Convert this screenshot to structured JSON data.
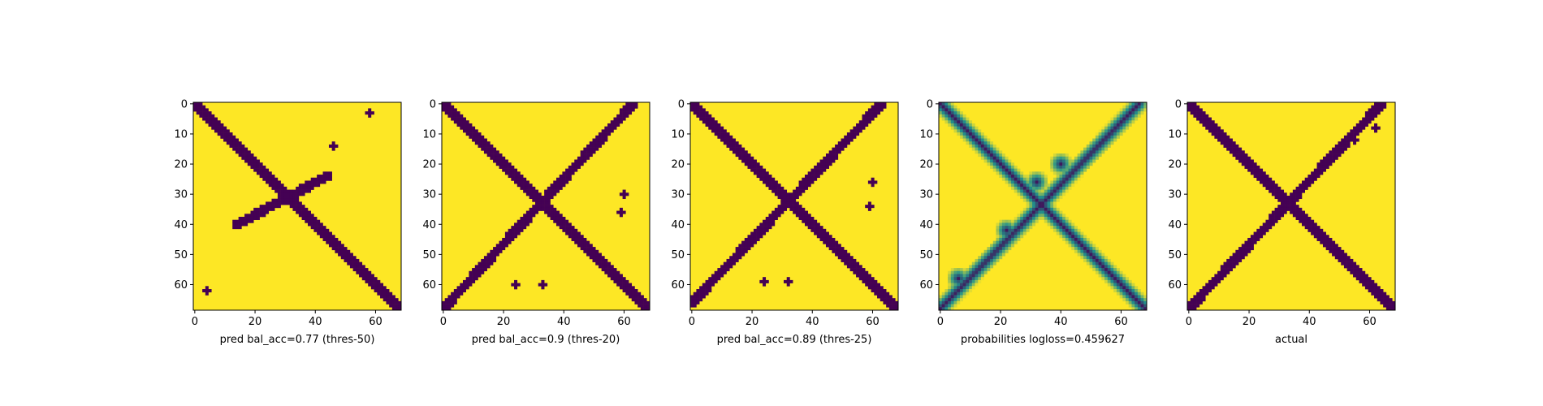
{
  "chart_data": [
    {
      "type": "heatmap",
      "title": "pred bal_acc=0.77 (thres-50)",
      "grid": false,
      "size": 69,
      "xticks": [
        0,
        20,
        40,
        60
      ],
      "yticks": [
        0,
        10,
        20,
        30,
        40,
        50,
        60
      ],
      "kind": "binary",
      "structures": {
        "main_diagonal": true,
        "anti_diagonal": [
          [
            24,
            44
          ],
          [
            40,
            14
          ]
        ],
        "blobs": [
          [
            3,
            58
          ],
          [
            62,
            4
          ],
          [
            14,
            46
          ]
        ]
      }
    },
    {
      "type": "heatmap",
      "title": "pred bal_acc=0.9 (thres-20)",
      "grid": false,
      "size": 69,
      "xticks": [
        0,
        20,
        40,
        60
      ],
      "yticks": [
        0,
        10,
        20,
        30,
        40,
        50,
        60
      ],
      "kind": "binary",
      "structures": {
        "main_diagonal": true,
        "anti_diagonal": [
          [
            0,
            63
          ],
          [
            68,
            0
          ]
        ],
        "blobs": [
          [
            30,
            60
          ],
          [
            36,
            59
          ],
          [
            60,
            24
          ],
          [
            60,
            33
          ]
        ]
      }
    },
    {
      "type": "heatmap",
      "title": "pred bal_acc=0.89 (thres-25)",
      "grid": false,
      "size": 69,
      "xticks": [
        0,
        20,
        40,
        60
      ],
      "yticks": [
        0,
        10,
        20,
        30,
        40,
        50,
        60
      ],
      "kind": "binary",
      "structures": {
        "main_diagonal": true,
        "anti_diagonal": [
          [
            0,
            63
          ],
          [
            66,
            0
          ]
        ],
        "blobs": [
          [
            26,
            60
          ],
          [
            34,
            59
          ],
          [
            59,
            24
          ],
          [
            59,
            32
          ]
        ]
      }
    },
    {
      "type": "heatmap",
      "title": "probabilities logloss=0.459627",
      "grid": false,
      "size": 69,
      "xticks": [
        0,
        20,
        40,
        60
      ],
      "yticks": [
        0,
        10,
        20,
        30,
        40,
        50,
        60
      ],
      "kind": "continuous",
      "structures": {
        "main_diagonal": true,
        "anti_diagonal": [
          [
            0,
            66
          ],
          [
            68,
            0
          ]
        ],
        "blobs": [
          [
            20,
            40
          ],
          [
            26,
            32
          ],
          [
            42,
            22
          ],
          [
            58,
            6
          ]
        ]
      }
    },
    {
      "type": "heatmap",
      "title": "actual",
      "grid": false,
      "size": 69,
      "xticks": [
        0,
        20,
        40,
        60
      ],
      "yticks": [
        0,
        10,
        20,
        30,
        40,
        50,
        60
      ],
      "kind": "binary",
      "structures": {
        "main_diagonal": true,
        "anti_diagonal": [
          [
            0,
            64
          ],
          [
            68,
            0
          ]
        ],
        "blobs": [
          [
            12,
            55
          ],
          [
            8,
            62
          ],
          [
            54,
            14
          ]
        ]
      }
    }
  ],
  "colors": {
    "low": "#440154",
    "mid": "#21918c",
    "high": "#fde725"
  }
}
